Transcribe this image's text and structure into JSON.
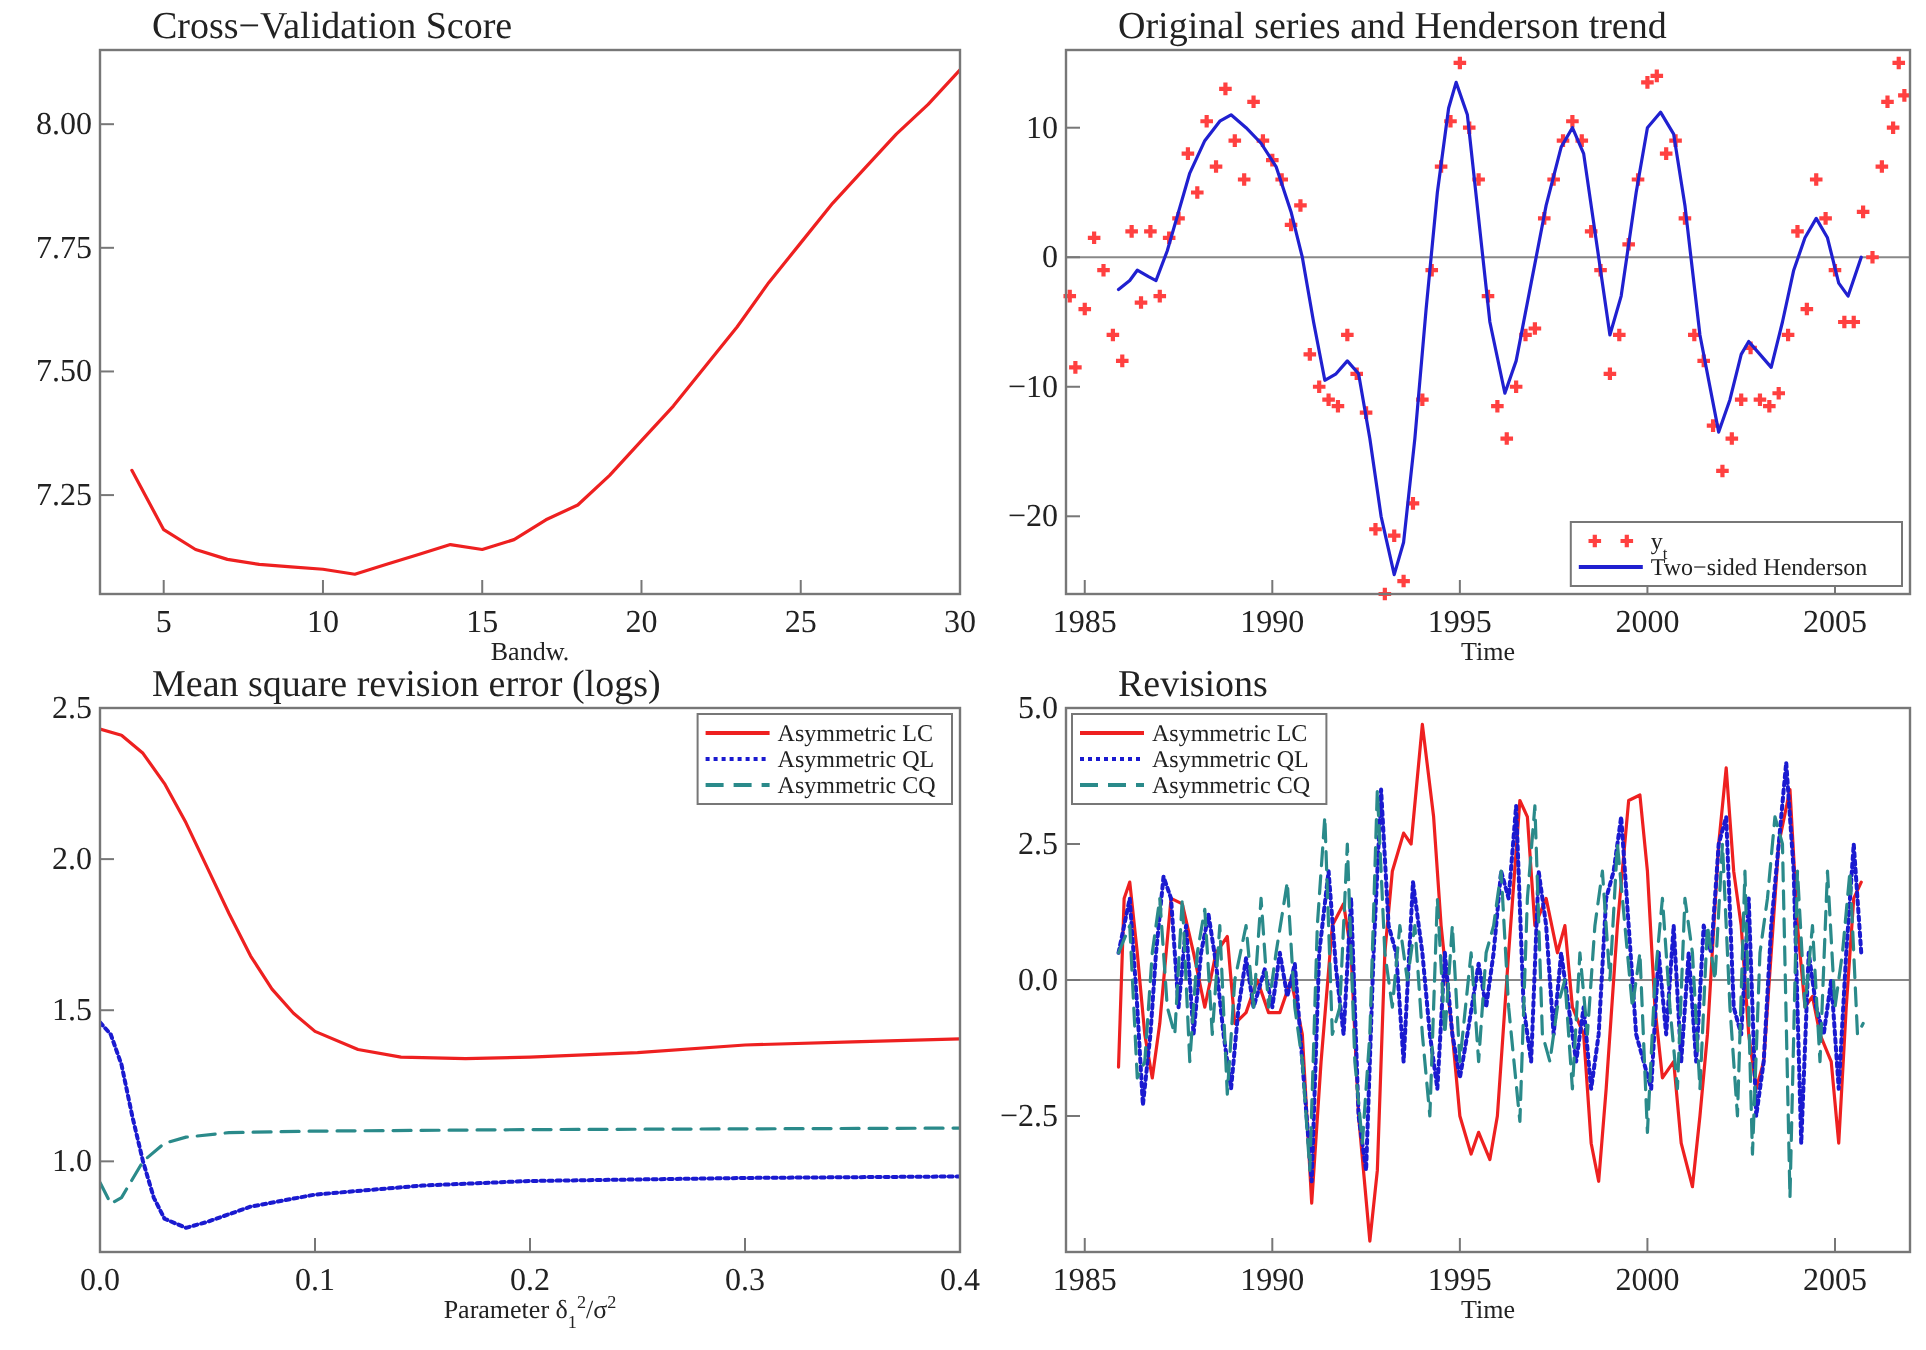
{
  "chart_data": [
    {
      "type": "line",
      "title": "Cross−Validation Score",
      "xlabel": "Bandw.",
      "xlim": [
        3,
        30
      ],
      "xticks": [
        5,
        10,
        15,
        20,
        25,
        30
      ],
      "ylim": [
        7.05,
        8.15
      ],
      "yticks": [
        {
          "value": 7.25,
          "label": "7.25"
        },
        {
          "value": 7.5,
          "label": "7.50"
        },
        {
          "value": 7.75,
          "label": "7.75"
        },
        {
          "value": 8,
          "label": "8.00"
        }
      ],
      "series": [
        {
          "color": "#ee2020",
          "x": [
            4,
            5,
            6,
            7,
            8,
            9,
            10,
            11,
            12,
            13,
            14,
            15,
            16,
            17,
            18,
            19,
            20,
            21,
            22,
            23,
            24,
            25,
            26,
            27,
            28,
            29,
            30
          ],
          "values": [
            7.3,
            7.18,
            7.14,
            7.12,
            7.11,
            7.105,
            7.1,
            7.09,
            7.11,
            7.13,
            7.15,
            7.14,
            7.16,
            7.2,
            7.23,
            7.29,
            7.36,
            7.43,
            7.51,
            7.59,
            7.68,
            7.76,
            7.84,
            7.91,
            7.98,
            8.04,
            8.11
          ]
        }
      ]
    },
    {
      "type": "line",
      "title": "Original series and Henderson trend",
      "xlabel": "Time",
      "xlim": [
        1984.5,
        2007
      ],
      "xticks": [
        1985,
        1990,
        1995,
        2000,
        2005
      ],
      "ylim": [
        -26,
        16
      ],
      "yticks": [
        {
          "value": -20,
          "label": "−20"
        },
        {
          "value": -10,
          "label": "−10"
        },
        0,
        10
      ],
      "legend": "bottom right",
      "ref_lines": [
        {
          "axis": "y",
          "value": 0,
          "color": "#888888"
        }
      ],
      "series": [
        {
          "type": "scatter",
          "name": "y$_{t}$",
          "color": "#ff4040",
          "marker": "cross",
          "x": [
            1984.6,
            1984.75,
            1985,
            1985.25,
            1985.5,
            1985.75,
            1986,
            1986.25,
            1986.5,
            1986.75,
            1987,
            1987.25,
            1987.5,
            1987.75,
            1988,
            1988.25,
            1988.5,
            1988.75,
            1989,
            1989.25,
            1989.5,
            1989.75,
            1990,
            1990.25,
            1990.5,
            1990.75,
            1991,
            1991.25,
            1991.5,
            1991.75,
            1992,
            1992.25,
            1992.5,
            1992.75,
            1993,
            1993.25,
            1993.5,
            1993.75,
            1994,
            1994.25,
            1994.5,
            1994.75,
            1995,
            1995.25,
            1995.5,
            1995.75,
            1996,
            1996.25,
            1996.5,
            1996.75,
            1997,
            1997.25,
            1997.5,
            1997.75,
            1998,
            1998.25,
            1998.5,
            1998.75,
            1999,
            1999.25,
            1999.5,
            1999.75,
            2000,
            2000.25,
            2000.5,
            2000.75,
            2001,
            2001.25,
            2001.5,
            2001.75,
            2002,
            2002.25,
            2002.5,
            2002.75,
            2003,
            2003.25,
            2003.5,
            2003.75,
            2004,
            2004.25,
            2004.5,
            2004.75,
            2005,
            2005.25,
            2005.5,
            2005.75,
            2006,
            2006.25,
            2006.4,
            2006.55,
            2006.7,
            2006.85
          ],
          "values": [
            -3,
            -8.5,
            -4,
            1.5,
            -1,
            -6,
            -8,
            2,
            -3.5,
            2,
            -3,
            1.5,
            3,
            8,
            5,
            10.5,
            7,
            13,
            9,
            6,
            12,
            9,
            7.5,
            6,
            2.5,
            4,
            -7.5,
            -10,
            -11,
            -11.5,
            -6,
            -9,
            -12,
            -21,
            -26,
            -21.5,
            -25,
            -19,
            -11,
            -1,
            7,
            10.5,
            15,
            10,
            6,
            -3,
            -11.5,
            -14,
            -10,
            -6,
            -5.5,
            3,
            6,
            9,
            10.5,
            9,
            2,
            -1,
            -9,
            -6,
            1,
            6,
            13.5,
            14,
            8,
            9,
            3,
            -6,
            -8,
            -13,
            -16.5,
            -14,
            -11,
            -7,
            -11,
            -11.5,
            -10.5,
            -6,
            2,
            -4,
            6,
            3,
            -1,
            -5,
            -5,
            3.5,
            0,
            7,
            12,
            10,
            15,
            12.5
          ]
        },
        {
          "name": "Two−sided Henderson",
          "color": "#2020d0",
          "x": [
            1985.9,
            1986.2,
            1986.4,
            1986.7,
            1986.9,
            1987.2,
            1987.5,
            1987.8,
            1988.2,
            1988.6,
            1988.9,
            1989.3,
            1989.7,
            1990.1,
            1990.5,
            1990.8,
            1991.1,
            1991.4,
            1991.7,
            1992,
            1992.3,
            1992.6,
            1992.9,
            1993.25,
            1993.5,
            1993.8,
            1994.1,
            1994.4,
            1994.7,
            1994.9,
            1995.2,
            1995.5,
            1995.8,
            1996.2,
            1996.5,
            1996.9,
            1997.3,
            1997.7,
            1998,
            1998.3,
            1998.7,
            1999,
            1999.3,
            1999.7,
            2000,
            2000.35,
            2000.7,
            2001,
            2001.4,
            2001.9,
            2002.2,
            2002.5,
            2002.7,
            2003,
            2003.3,
            2003.6,
            2003.9,
            2004.2,
            2004.5,
            2004.8,
            2005.1,
            2005.35,
            2005.7
          ],
          "values": [
            -2.5,
            -1.8,
            -1,
            -1.5,
            -1.8,
            0.5,
            3.5,
            6.5,
            9,
            10.5,
            11,
            10,
            8.8,
            7,
            3.5,
            0,
            -5,
            -9.5,
            -9,
            -8,
            -9,
            -14,
            -20,
            -24.5,
            -22,
            -14,
            -4,
            5,
            11.5,
            13.5,
            11,
            3,
            -5,
            -10.5,
            -8,
            -2,
            4,
            8.5,
            10,
            8,
            0,
            -6,
            -3,
            5,
            10,
            11.2,
            9.5,
            4,
            -6,
            -13.5,
            -11,
            -7.5,
            -6.5,
            -7.5,
            -8.5,
            -5,
            -1,
            1.5,
            3,
            1.5,
            -2,
            -3,
            0
          ]
        }
      ]
    },
    {
      "type": "line",
      "title": "Mean square revision error (logs)",
      "xlabel": "Parameter δ$_{1}$$^{2}$/σ$^{2}$",
      "xlim": [
        0,
        0.4
      ],
      "xticks": [
        {
          "value": 0,
          "label": "0.0"
        },
        0.1,
        0.2,
        0.3,
        0.4
      ],
      "ylim": [
        0.7,
        2.5
      ],
      "yticks": [
        {
          "value": 1,
          "label": "1.0"
        },
        1.5,
        {
          "value": 2,
          "label": "2.0"
        },
        2.5
      ],
      "legend": "top right",
      "series": [
        {
          "name": "Asymmetric LC",
          "color": "#ee2020",
          "line_style": "solid",
          "x": [
            0,
            0.01,
            0.02,
            0.03,
            0.04,
            0.05,
            0.06,
            0.07,
            0.08,
            0.09,
            0.1,
            0.12,
            0.14,
            0.17,
            0.2,
            0.25,
            0.3,
            0.35,
            0.4
          ],
          "values": [
            2.43,
            2.41,
            2.35,
            2.25,
            2.12,
            1.97,
            1.82,
            1.68,
            1.57,
            1.49,
            1.43,
            1.37,
            1.345,
            1.34,
            1.345,
            1.36,
            1.385,
            1.395,
            1.405
          ]
        },
        {
          "name": "Asymmetric QL",
          "color": "#1a1ad0",
          "line_style": "dotted",
          "x": [
            0,
            0.005,
            0.01,
            0.015,
            0.02,
            0.025,
            0.03,
            0.04,
            0.05,
            0.07,
            0.1,
            0.15,
            0.2,
            0.3,
            0.4
          ],
          "values": [
            1.46,
            1.42,
            1.32,
            1.15,
            1,
            0.88,
            0.81,
            0.78,
            0.8,
            0.85,
            0.89,
            0.92,
            0.935,
            0.945,
            0.95
          ]
        },
        {
          "name": "Asymmetric CQ",
          "color": "#2a8a8a",
          "line_style": "dashed",
          "x": [
            0,
            0.005,
            0.01,
            0.02,
            0.03,
            0.04,
            0.06,
            0.1,
            0.2,
            0.4
          ],
          "values": [
            0.93,
            0.86,
            0.88,
            1,
            1.06,
            1.08,
            1.095,
            1.1,
            1.105,
            1.11
          ]
        }
      ]
    },
    {
      "type": "line",
      "title": "Revisions",
      "xlabel": "Time",
      "xlim": [
        1984.5,
        2007
      ],
      "xticks": [
        1985,
        1990,
        1995,
        2000,
        2005
      ],
      "ylim": [
        -5,
        5
      ],
      "yticks": [
        {
          "value": -2.5,
          "label": "−2.5"
        },
        {
          "value": 0,
          "label": "0.0"
        },
        2.5,
        {
          "value": 5,
          "label": "5.0"
        }
      ],
      "legend": "top left",
      "ref_lines": [
        {
          "axis": "y",
          "value": 0,
          "color": "#888888"
        }
      ],
      "series": [
        {
          "name": "Asymmetric LC",
          "color": "#ee2020",
          "line_style": "solid",
          "x": [
            1985.9,
            1986.05,
            1986.2,
            1986.4,
            1986.6,
            1986.8,
            1987,
            1987.3,
            1987.6,
            1987.9,
            1988.2,
            1988.5,
            1988.8,
            1989,
            1989.3,
            1989.6,
            1989.9,
            1990.2,
            1990.5,
            1990.8,
            1991.05,
            1991.3,
            1991.6,
            1991.9,
            1992.1,
            1992.3,
            1992.6,
            1992.8,
            1993,
            1993.2,
            1993.5,
            1993.7,
            1994,
            1994.3,
            1994.5,
            1994.8,
            1995,
            1995.3,
            1995.5,
            1995.8,
            1996,
            1996.3,
            1996.6,
            1996.8,
            1997,
            1997.3,
            1997.6,
            1997.8,
            1998,
            1998.3,
            1998.5,
            1998.7,
            1998.9,
            1999.2,
            1999.5,
            1999.8,
            2000,
            2000.2,
            2000.4,
            2000.7,
            2000.9,
            2001.2,
            2001.4,
            2001.6,
            2001.9,
            2002.1,
            2002.3,
            2002.5,
            2002.7,
            2002.9,
            2003.1,
            2003.3,
            2003.5,
            2003.8,
            2004,
            2004.2,
            2004.4,
            2004.6,
            2004.9,
            2005.1,
            2005.3,
            2005.5,
            2005.7
          ],
          "values": [
            -1.6,
            1.5,
            1.8,
            0.5,
            -1,
            -1.8,
            -0.8,
            1.5,
            1.4,
            0.5,
            -0.5,
            0.5,
            0.8,
            -0.8,
            -0.6,
            0,
            -0.6,
            -0.6,
            0,
            -1,
            -4.1,
            -1.5,
            1,
            1.4,
            0.5,
            -2.5,
            -4.8,
            -3.5,
            0.5,
            2,
            2.7,
            2.5,
            4.7,
            3,
            1,
            -1,
            -2.5,
            -3.2,
            -2.8,
            -3.3,
            -2.5,
            0.5,
            3.3,
            3,
            1,
            1.5,
            0.5,
            1,
            -0.5,
            -1,
            -3,
            -3.7,
            -2,
            1,
            3.3,
            3.4,
            2,
            -0.5,
            -1.8,
            -1.5,
            -3,
            -3.8,
            -2.5,
            -1,
            2.5,
            3.9,
            2,
            1,
            -1,
            -2,
            -1.5,
            0.5,
            2.5,
            3.5,
            1,
            -0.5,
            -0.3,
            -1,
            -1.5,
            -3,
            -0.5,
            1.5,
            1.8
          ]
        },
        {
          "name": "Asymmetric QL",
          "color": "#1a1ad0",
          "line_style": "dotted",
          "x": [
            1985.9,
            1986.2,
            1986.4,
            1986.55,
            1986.75,
            1986.9,
            1987.1,
            1987.3,
            1987.5,
            1987.7,
            1987.9,
            1988.1,
            1988.3,
            1988.5,
            1988.7,
            1988.9,
            1989.1,
            1989.3,
            1989.5,
            1989.8,
            1990,
            1990.2,
            1990.4,
            1990.6,
            1990.8,
            1991.05,
            1991.25,
            1991.5,
            1991.7,
            1991.9,
            1992.1,
            1992.3,
            1992.5,
            1992.7,
            1992.9,
            1993.1,
            1993.3,
            1993.5,
            1993.75,
            1994,
            1994.2,
            1994.4,
            1994.6,
            1994.8,
            1995,
            1995.2,
            1995.5,
            1995.7,
            1995.9,
            1996.1,
            1996.3,
            1996.5,
            1996.7,
            1996.9,
            1997.1,
            1997.3,
            1997.5,
            1997.7,
            1997.9,
            1998.1,
            1998.3,
            1998.5,
            1998.7,
            1998.9,
            1999.1,
            1999.3,
            1999.5,
            1999.7,
            1999.9,
            2000.1,
            2000.3,
            2000.5,
            2000.7,
            2000.9,
            2001.1,
            2001.3,
            2001.5,
            2001.7,
            2001.9,
            2002.1,
            2002.3,
            2002.5,
            2002.7,
            2002.9,
            2003.1,
            2003.3,
            2003.5,
            2003.7,
            2003.9,
            2004.1,
            2004.3,
            2004.5,
            2004.7,
            2004.9,
            2005.1,
            2005.3,
            2005.5,
            2005.7
          ],
          "values": [
            0.5,
            1.5,
            -0.5,
            -2.3,
            -1,
            0.5,
            1.9,
            1.5,
            -0.5,
            1,
            -1,
            0.5,
            1.2,
            0.3,
            -1,
            -2,
            -0.5,
            0.4,
            -0.5,
            0.2,
            -0.5,
            0.5,
            -0.3,
            0.3,
            -1.5,
            -3.7,
            0.5,
            2,
            0.2,
            -1,
            1.5,
            -2.5,
            -3.5,
            0.5,
            3.5,
            1,
            0.5,
            -1.5,
            1.8,
            0.5,
            -1,
            -2,
            0.5,
            -1,
            -1.8,
            -1,
            0.3,
            -0.5,
            0.5,
            2,
            1.5,
            3.2,
            -0.5,
            -1.5,
            2,
            1,
            -1,
            0.5,
            -0.5,
            -1.5,
            -0.5,
            -2,
            -1,
            1.5,
            2,
            3,
            1,
            -1,
            -1.5,
            -2,
            0.5,
            -1,
            1,
            -1.5,
            0.5,
            -1.5,
            1,
            0.5,
            2.5,
            3,
            -0.5,
            -1,
            1.5,
            -2.5,
            -1.5,
            1,
            2.5,
            4,
            2,
            -3,
            0.5,
            -0.5,
            -1,
            0,
            -2,
            0.5,
            2.5,
            0.5
          ]
        },
        {
          "name": "Asymmetric CQ",
          "color": "#2a8a8a",
          "line_style": "dashed",
          "x": [
            1985.9,
            1986.2,
            1986.4,
            1986.6,
            1986.8,
            1987,
            1987.2,
            1987.4,
            1987.6,
            1987.8,
            1988,
            1988.2,
            1988.4,
            1988.6,
            1988.8,
            1989,
            1989.3,
            1989.5,
            1989.7,
            1989.9,
            1990.1,
            1990.4,
            1990.6,
            1990.8,
            1991,
            1991.2,
            1991.4,
            1991.6,
            1991.8,
            1992,
            1992.2,
            1992.4,
            1992.6,
            1992.8,
            1993,
            1993.2,
            1993.4,
            1993.6,
            1993.8,
            1994,
            1994.2,
            1994.4,
            1994.6,
            1994.8,
            1995,
            1995.3,
            1995.5,
            1995.7,
            1995.9,
            1996.1,
            1996.3,
            1996.6,
            1996.8,
            1997,
            1997.2,
            1997.4,
            1997.6,
            1997.8,
            1998,
            1998.2,
            1998.4,
            1998.6,
            1998.8,
            1999,
            1999.2,
            1999.4,
            1999.6,
            1999.8,
            2000,
            2000.2,
            2000.4,
            2000.6,
            2000.8,
            2001,
            2001.2,
            2001.4,
            2001.6,
            2001.8,
            2002,
            2002.2,
            2002.4,
            2002.6,
            2002.8,
            2003,
            2003.2,
            2003.4,
            2003.6,
            2003.8,
            2004,
            2004.2,
            2004.4,
            2004.6,
            2004.8,
            2005,
            2005.2,
            2005.4,
            2005.6,
            2005.75
          ],
          "values": [
            0.5,
            1,
            -1.8,
            -1.5,
            0.5,
            1.5,
            -0.5,
            -1,
            1.5,
            -1.5,
            0.5,
            1.3,
            -1,
            1,
            -2.1,
            0,
            1,
            -0.5,
            1.5,
            -0.5,
            0.5,
            1.8,
            -0.5,
            -1.5,
            -3.5,
            1,
            3,
            -1,
            -0.5,
            2.5,
            -1.5,
            -3,
            -1,
            3.5,
            0.5,
            -0.5,
            1,
            0,
            1,
            -1,
            -2.5,
            1.5,
            -1,
            1,
            -1.5,
            0.5,
            -1.5,
            0.5,
            1,
            2,
            -0.5,
            -2.6,
            1.5,
            3.2,
            -1,
            -1.5,
            -0.5,
            0,
            -2,
            0.5,
            -1,
            1,
            2,
            0,
            2.5,
            1,
            -0.5,
            0.5,
            -2.8,
            0,
            1.5,
            -0.5,
            -2,
            1.5,
            0.5,
            -2,
            1,
            0,
            2.5,
            -0.5,
            -2.5,
            2,
            -3.2,
            0.5,
            1.5,
            3,
            2.5,
            -4,
            2,
            -0.5,
            1,
            -1.5,
            2,
            -0.5,
            0.5,
            2,
            -1,
            -0.8
          ]
        }
      ]
    }
  ]
}
